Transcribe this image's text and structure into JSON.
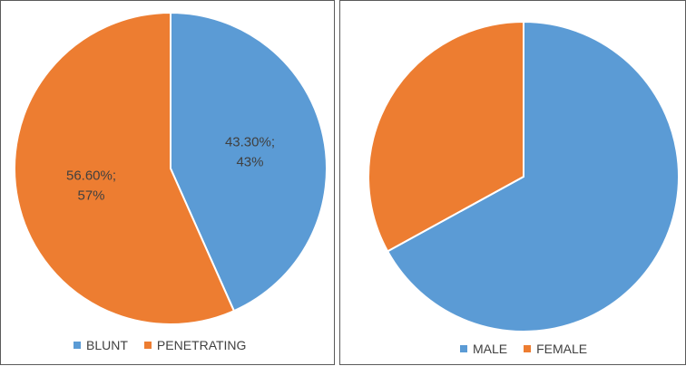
{
  "colors": {
    "blue": "#5b9bd5",
    "orange": "#ed7d31"
  },
  "chart_data": [
    {
      "type": "pie",
      "categories": [
        "BLUNT",
        "PENETRATING"
      ],
      "values": [
        43.3,
        56.6
      ],
      "data_labels": [
        [
          "43.30%;",
          "43%"
        ],
        [
          "56.60%;",
          "57%"
        ]
      ],
      "legend": "bottom"
    },
    {
      "type": "pie",
      "categories": [
        "MALE",
        "FEMALE"
      ],
      "values": [
        67,
        33
      ],
      "legend": "bottom"
    }
  ]
}
